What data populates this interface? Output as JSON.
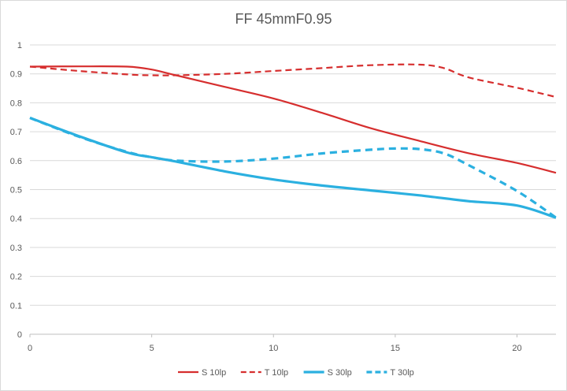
{
  "chart_data": {
    "type": "line",
    "title": "FF 45mmF0.95",
    "xlabel": "",
    "ylabel": "",
    "xlim": [
      0,
      21.6
    ],
    "ylim": [
      0,
      1
    ],
    "x_ticks": [
      0,
      5,
      10,
      15,
      20
    ],
    "y_ticks": [
      0,
      0.1,
      0.2,
      0.3,
      0.4,
      0.5,
      0.6,
      0.7,
      0.8,
      0.9,
      1
    ],
    "grid": "horizontal",
    "legend_position": "bottom",
    "series": [
      {
        "name": "S 10lp",
        "color": "#d62e2e",
        "style": "solid",
        "x": [
          0,
          2,
          4,
          5,
          6,
          8,
          10,
          12,
          14,
          16,
          18,
          20,
          21.6
        ],
        "y": [
          0.925,
          0.926,
          0.925,
          0.915,
          0.895,
          0.855,
          0.815,
          0.765,
          0.712,
          0.668,
          0.626,
          0.592,
          0.558
        ]
      },
      {
        "name": "T 10lp",
        "color": "#d62e2e",
        "style": "dashed",
        "x": [
          0,
          2,
          4,
          5,
          6,
          8,
          10,
          12,
          14,
          16,
          17,
          18,
          20,
          21.6
        ],
        "y": [
          0.925,
          0.91,
          0.898,
          0.895,
          0.895,
          0.9,
          0.91,
          0.92,
          0.93,
          0.932,
          0.92,
          0.888,
          0.852,
          0.82
        ]
      },
      {
        "name": "S 30lp",
        "color": "#2bb0e0",
        "style": "solid",
        "x": [
          0,
          2,
          4,
          5,
          6,
          8,
          10,
          12,
          14,
          16,
          18,
          20,
          21.6
        ],
        "y": [
          0.748,
          0.685,
          0.628,
          0.612,
          0.597,
          0.563,
          0.535,
          0.514,
          0.497,
          0.48,
          0.46,
          0.445,
          0.403
        ]
      },
      {
        "name": "T 30lp",
        "color": "#2bb0e0",
        "style": "dashed",
        "x": [
          0,
          2,
          4,
          5,
          6,
          8,
          10,
          12,
          14,
          15,
          16,
          17,
          18,
          20,
          21.6
        ],
        "y": [
          0.748,
          0.683,
          0.63,
          0.612,
          0.6,
          0.597,
          0.607,
          0.625,
          0.638,
          0.642,
          0.64,
          0.625,
          0.585,
          0.495,
          0.403
        ]
      }
    ]
  }
}
